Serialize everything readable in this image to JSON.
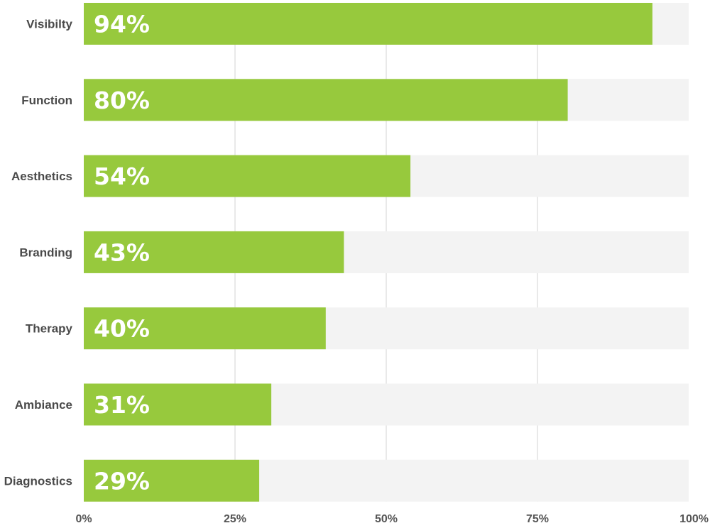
{
  "chart_data": {
    "type": "bar",
    "orientation": "horizontal",
    "categories": [
      "Visibilty",
      "Function",
      "Aesthetics",
      "Branding",
      "Therapy",
      "Ambiance",
      "Diagnostics"
    ],
    "values": [
      94,
      80,
      54,
      43,
      40,
      31,
      29
    ],
    "value_labels": [
      "94%",
      "80%",
      "54%",
      "43%",
      "40%",
      "31%",
      "29%"
    ],
    "xlim": [
      0,
      100
    ],
    "x_ticks": [
      0,
      25,
      50,
      75,
      100
    ],
    "x_tick_labels": [
      "0%",
      "25%",
      "50%",
      "75%",
      "100%"
    ],
    "grid": true,
    "legend": "none",
    "title": "",
    "xlabel": "",
    "ylabel": "",
    "colors": {
      "bar": "#97c93d",
      "track": "#f3f3f3",
      "gridline": "#e2e2e2"
    }
  }
}
